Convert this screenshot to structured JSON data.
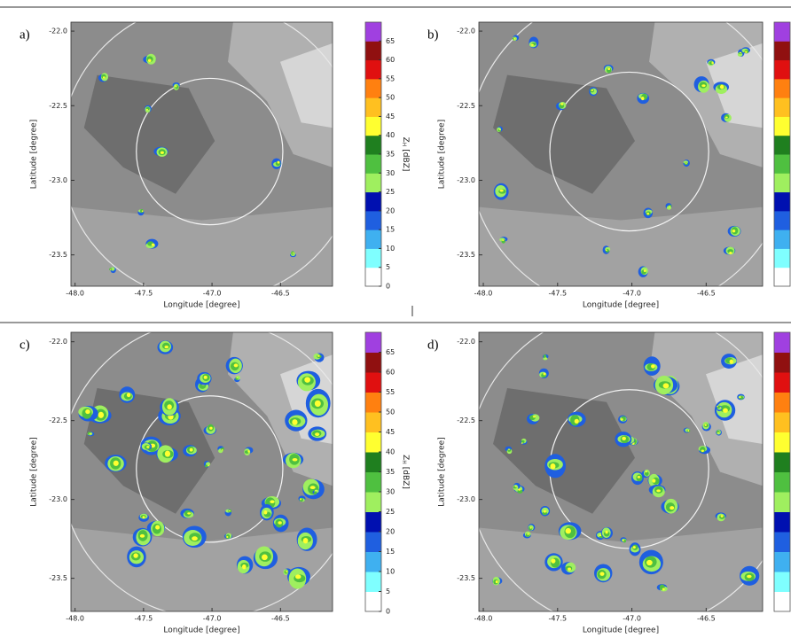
{
  "chart_data": [
    {
      "type": "map",
      "panel_label": "a)",
      "xlabel": "Longitude [degree]",
      "ylabel": "Latitude [degree]",
      "xlim": [
        -48.03,
        -46.12
      ],
      "ylim": [
        -23.71,
        -21.94
      ],
      "xticks": [
        {
          "value": -48.0,
          "label": "-48.0"
        },
        -47.5,
        {
          "value": -47.0,
          "label": "-47.0"
        },
        -46.5
      ],
      "yticks": [
        {
          "value": -22.0,
          "label": "-22.0"
        },
        -22.5,
        {
          "value": -23.0,
          "label": "-23.0"
        },
        -23.5
      ],
      "colorbar": {
        "label": {
          "symbol": "Z",
          "subscript": "H",
          "unit": "[dBZ]"
        },
        "clim": [
          0,
          65
        ],
        "ticks": [
          0,
          5,
          10,
          15,
          20,
          25,
          30,
          35,
          40,
          45,
          50,
          55,
          60,
          65
        ],
        "colors": [
          "#ffffff",
          "#7fffff",
          "#3fb0f0",
          "#1f5fe0",
          "#0010b0",
          "#9fef5f",
          "#4fc040",
          "#1f7f1f",
          "#ffff30",
          "#ffc020",
          "#ff8010",
          "#e01010",
          "#901010",
          "#a040e0"
        ]
      }
    },
    {
      "type": "map",
      "panel_label": "b)",
      "xlabel": "Longitude [degree]",
      "ylabel": "Latitude [degree]",
      "xlim": [
        -48.03,
        -46.12
      ],
      "ylim": [
        -23.71,
        -21.94
      ],
      "xticks": [
        {
          "value": -48.0,
          "label": "-48.0"
        },
        -47.5,
        {
          "value": -47.0,
          "label": "-47.0"
        },
        -46.5
      ],
      "yticks": [
        {
          "value": -22.0,
          "label": "-22.0"
        },
        -22.5,
        {
          "value": -23.0,
          "label": "-23.0"
        },
        -23.5
      ],
      "colorbar": {
        "colors": [
          "#ffffff",
          "#7fffff",
          "#3fb0f0",
          "#1f5fe0",
          "#0010b0",
          "#9fef5f",
          "#4fc040",
          "#1f7f1f",
          "#ffff30",
          "#ffc020",
          "#ff8010",
          "#e01010",
          "#901010",
          "#a040e0"
        ]
      }
    },
    {
      "type": "map",
      "panel_label": "c)",
      "xlabel": "Longitude [degree]",
      "ylabel": "Latitude [degree]",
      "xlim": [
        -48.03,
        -46.12
      ],
      "ylim": [
        -23.71,
        -21.94
      ],
      "xticks": [
        {
          "value": -48.0,
          "label": "-48.0"
        },
        -47.5,
        {
          "value": -47.0,
          "label": "-47.0"
        },
        -46.5
      ],
      "yticks": [
        {
          "value": -22.0,
          "label": "-22.0"
        },
        -22.5,
        {
          "value": -23.0,
          "label": "-23.0"
        },
        -23.5
      ],
      "colorbar": {
        "label": {
          "symbol": "Z",
          "subscript": "H",
          "unit": "[dBZ]"
        },
        "clim": [
          0,
          65
        ],
        "ticks": [
          0,
          5,
          10,
          15,
          20,
          25,
          30,
          35,
          40,
          45,
          50,
          55,
          60,
          65
        ],
        "colors": [
          "#ffffff",
          "#7fffff",
          "#3fb0f0",
          "#1f5fe0",
          "#0010b0",
          "#9fef5f",
          "#4fc040",
          "#1f7f1f",
          "#ffff30",
          "#ffc020",
          "#ff8010",
          "#e01010",
          "#901010",
          "#a040e0"
        ]
      }
    },
    {
      "type": "map",
      "panel_label": "d)",
      "xlabel": "Longitude [degree]",
      "ylabel": "Latitude [degree]",
      "xlim": [
        -48.03,
        -46.12
      ],
      "ylim": [
        -23.71,
        -21.94
      ],
      "xticks": [
        {
          "value": -48.0,
          "label": "-48.0"
        },
        -47.5,
        {
          "value": -47.0,
          "label": "-47.0"
        },
        -46.5
      ],
      "yticks": [
        {
          "value": -22.0,
          "label": "-22.0"
        },
        -22.5,
        {
          "value": -23.0,
          "label": "-23.0"
        },
        -23.5
      ],
      "colorbar": {
        "colors": [
          "#ffffff",
          "#7fffff",
          "#3fb0f0",
          "#1f5fe0",
          "#0010b0",
          "#9fef5f",
          "#4fc040",
          "#1f7f1f",
          "#ffff30",
          "#ffc020",
          "#ff8010",
          "#e01010",
          "#901010",
          "#a040e0"
        ]
      }
    }
  ]
}
